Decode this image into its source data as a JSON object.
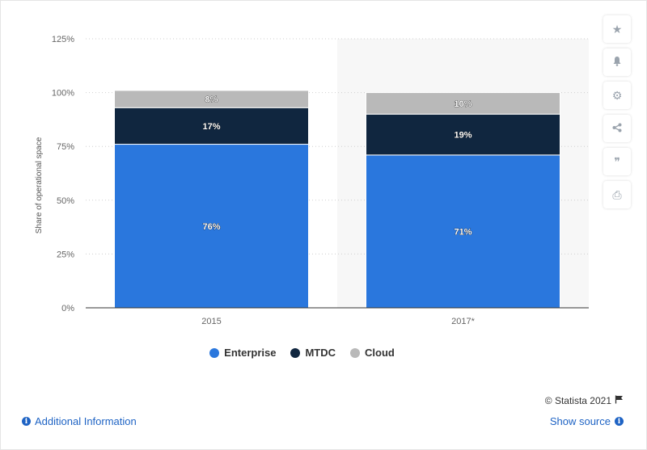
{
  "chart_data": {
    "type": "bar",
    "stacked": true,
    "categories": [
      "2015",
      "2017*"
    ],
    "series": [
      {
        "name": "Enterprise",
        "values": [
          76,
          71
        ],
        "labels": [
          "76%",
          "71%"
        ],
        "color": "#2a77dd"
      },
      {
        "name": "MTDC",
        "values": [
          17,
          19
        ],
        "labels": [
          "17%",
          "19%"
        ],
        "color": "#10263f"
      },
      {
        "name": "Cloud",
        "values": [
          8,
          10
        ],
        "labels": [
          "8%",
          "10%"
        ],
        "color": "#b9b9b9"
      }
    ],
    "ylabel": "Share of operational space",
    "ylim": [
      0,
      125
    ],
    "yticks": [
      0,
      25,
      50,
      75,
      100,
      125
    ],
    "ytick_labels": [
      "0%",
      "25%",
      "50%",
      "75%",
      "100%",
      "125%"
    ],
    "grid": true,
    "legend_position": "bottom",
    "highlighted_category": "2017*"
  },
  "legend": {
    "items": [
      {
        "label": "Enterprise",
        "color": "#2a77dd"
      },
      {
        "label": "MTDC",
        "color": "#10263f"
      },
      {
        "label": "Cloud",
        "color": "#b9b9b9"
      }
    ]
  },
  "tools": [
    {
      "name": "favorite-icon",
      "glyph": "★"
    },
    {
      "name": "bell-icon",
      "glyph": "🔔"
    },
    {
      "name": "gear-icon",
      "glyph": "⚙"
    },
    {
      "name": "share-icon",
      "glyph": "⋖"
    },
    {
      "name": "quote-icon",
      "glyph": "❞"
    },
    {
      "name": "print-icon",
      "glyph": "⎙"
    }
  ],
  "footer": {
    "credit": "© Statista 2021",
    "additional_info": "Additional Information",
    "show_source": "Show source"
  }
}
